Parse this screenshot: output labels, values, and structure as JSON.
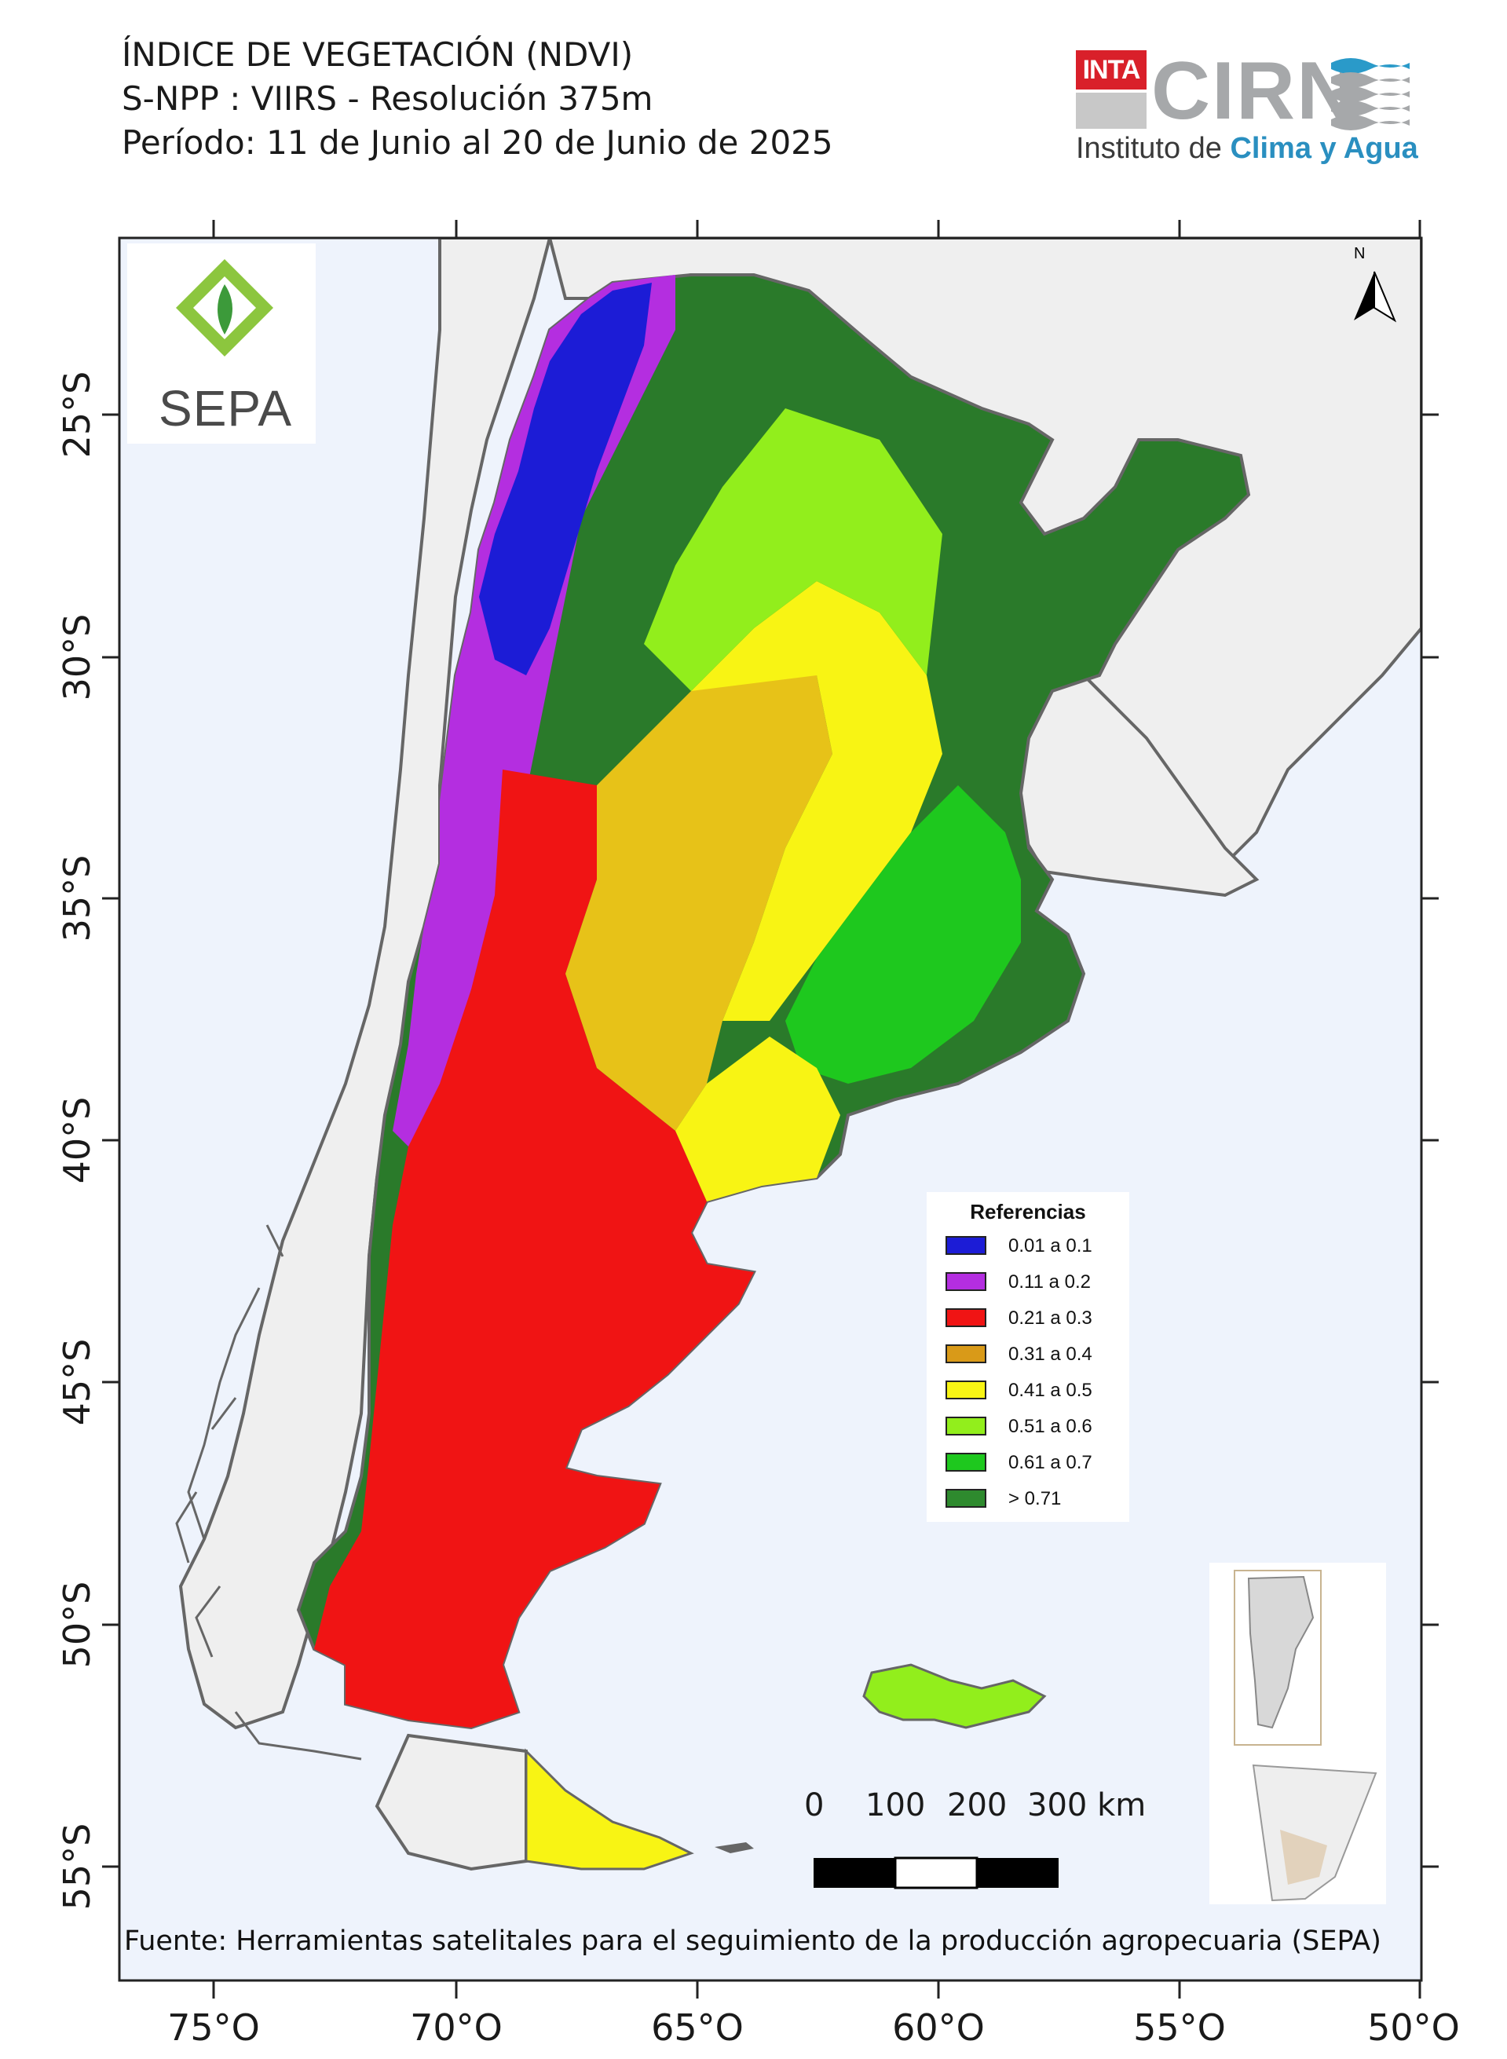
{
  "header": {
    "title_line1": "ÍNDICE DE VEGETACIÓN (NDVI)",
    "title_line2": "S-NPP : VIIRS - Resolución 375m",
    "title_line3": "Período: 11 de Junio al 20 de Junio de 2025"
  },
  "logos": {
    "inta": "INTA",
    "cirn": "CIRN",
    "institute_prefix": "Instituto de ",
    "institute_accent": "Clima y Agua",
    "sepa": "SEPA"
  },
  "map": {
    "latitude_labels": [
      "25°S",
      "30°S",
      "35°S",
      "40°S",
      "45°S",
      "50°S",
      "55°S"
    ],
    "longitude_labels": [
      "75°O",
      "70°O",
      "65°O",
      "60°O",
      "55°O",
      "50°O"
    ],
    "north_label": "N",
    "colors": {
      "ocean": "#eef3fc",
      "neighbor_land": "#efefef",
      "border": "#666666"
    }
  },
  "legend": {
    "title": "Referencias",
    "items": [
      {
        "label": "0.01 a 0.1",
        "color": "#1c1cd6"
      },
      {
        "label": "0.11 a 0.2",
        "color": "#b42ee0"
      },
      {
        "label": "0.21 a 0.3",
        "color": "#f01414"
      },
      {
        "label": "0.31 a 0.4",
        "color": "#d99a18"
      },
      {
        "label": "0.41 a 0.5",
        "color": "#f8f414"
      },
      {
        "label": "0.51 a 0.6",
        "color": "#92ee1c"
      },
      {
        "label": "0.61 a 0.7",
        "color": "#1ec81e"
      },
      {
        "label": "> 0.71",
        "color": "#2e8a2e"
      }
    ]
  },
  "scale_bar": {
    "labels": [
      "0",
      "100",
      "200",
      "300 km"
    ]
  },
  "footer": {
    "source": "Fuente: Herramientas satelitales para el seguimiento de la producción agropecuaria (SEPA)"
  }
}
